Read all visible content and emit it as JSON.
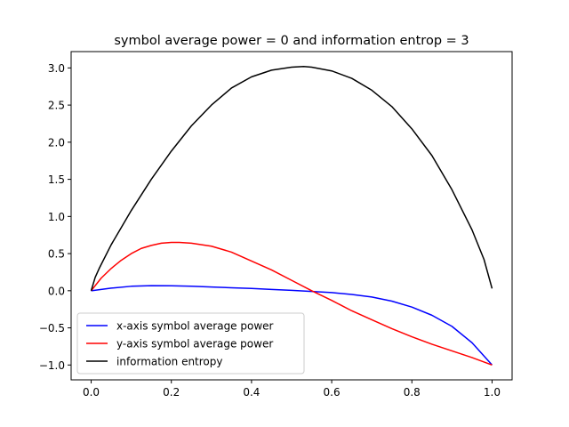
{
  "chart_data": {
    "type": "line",
    "title": "symbol average power = 0 and information entrop = 3",
    "xlabel": "",
    "ylabel": "",
    "xlim": [
      -0.05,
      1.05
    ],
    "ylim": [
      -1.2,
      3.22
    ],
    "xticks": [
      0.0,
      0.2,
      0.4,
      0.6,
      0.8,
      1.0
    ],
    "xtick_labels": [
      "0.0",
      "0.2",
      "0.4",
      "0.6",
      "0.8",
      "1.0"
    ],
    "yticks": [
      -1.0,
      -0.5,
      0.0,
      0.5,
      1.0,
      1.5,
      2.0,
      2.5,
      3.0
    ],
    "ytick_labels": [
      "−1.0",
      "−0.5",
      "0.0",
      "0.5",
      "1.0",
      "1.5",
      "2.0",
      "2.5",
      "3.0"
    ],
    "grid": false,
    "legend_position": "lower-left",
    "series": [
      {
        "name": "x-axis symbol average power",
        "color": "#0000ff",
        "x": [
          0.0,
          0.05,
          0.1,
          0.15,
          0.2,
          0.25,
          0.3,
          0.35,
          0.4,
          0.45,
          0.5,
          0.55,
          0.6,
          0.65,
          0.7,
          0.75,
          0.8,
          0.85,
          0.9,
          0.95,
          1.0
        ],
        "y": [
          0.0,
          0.035,
          0.06,
          0.068,
          0.066,
          0.06,
          0.05,
          0.04,
          0.03,
          0.018,
          0.005,
          -0.01,
          -0.025,
          -0.05,
          -0.085,
          -0.14,
          -0.22,
          -0.33,
          -0.48,
          -0.7,
          -1.0
        ]
      },
      {
        "name": "y-axis symbol average power",
        "color": "#ff0000",
        "x": [
          0.0,
          0.025,
          0.05,
          0.075,
          0.1,
          0.125,
          0.15,
          0.175,
          0.2,
          0.22,
          0.25,
          0.3,
          0.35,
          0.4,
          0.45,
          0.5,
          0.55,
          0.6,
          0.65,
          0.7,
          0.75,
          0.8,
          0.85,
          0.9,
          0.95,
          1.0
        ],
        "y": [
          0.0,
          0.17,
          0.3,
          0.41,
          0.5,
          0.57,
          0.61,
          0.64,
          0.65,
          0.65,
          0.64,
          0.6,
          0.52,
          0.4,
          0.28,
          0.14,
          0.0,
          -0.13,
          -0.27,
          -0.39,
          -0.51,
          -0.62,
          -0.72,
          -0.81,
          -0.9,
          -1.0
        ]
      },
      {
        "name": "information entropy",
        "color": "#000000",
        "x": [
          0.0,
          0.01,
          0.02,
          0.05,
          0.1,
          0.15,
          0.2,
          0.25,
          0.3,
          0.35,
          0.4,
          0.45,
          0.5,
          0.53,
          0.55,
          0.6,
          0.65,
          0.7,
          0.75,
          0.8,
          0.85,
          0.9,
          0.95,
          0.98,
          1.0
        ],
        "y": [
          0.0,
          0.18,
          0.3,
          0.62,
          1.08,
          1.5,
          1.88,
          2.22,
          2.5,
          2.73,
          2.88,
          2.97,
          3.01,
          3.02,
          3.01,
          2.96,
          2.86,
          2.7,
          2.48,
          2.18,
          1.82,
          1.36,
          0.82,
          0.42,
          0.03
        ]
      }
    ]
  }
}
